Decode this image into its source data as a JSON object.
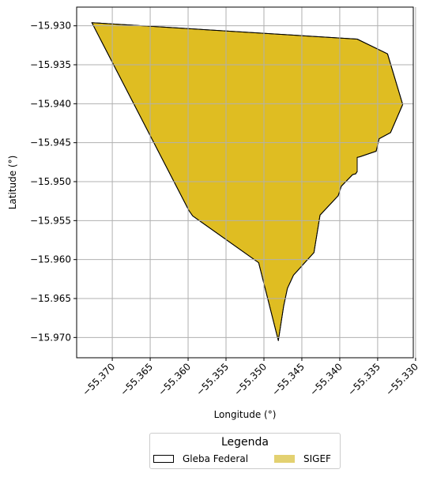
{
  "chart_data": {
    "type": "area",
    "title": "",
    "xlabel": "Longitude (°)",
    "ylabel": "Latitude (°)",
    "xlim": [
      -55.3747,
      -55.3303
    ],
    "ylim": [
      -15.9726,
      -15.9276
    ],
    "xticks": [
      -55.37,
      -55.365,
      -55.36,
      -55.355,
      -55.35,
      -55.345,
      -55.34,
      -55.335,
      -55.33
    ],
    "xtick_labels": [
      "−55.370",
      "−55.365",
      "−55.360",
      "−55.355",
      "−55.350",
      "−55.345",
      "−55.340",
      "−55.335",
      "−55.330"
    ],
    "yticks": [
      -15.93,
      -15.935,
      -15.94,
      -15.945,
      -15.95,
      -15.955,
      -15.96,
      -15.965,
      -15.97
    ],
    "ytick_labels": [
      "−15.930",
      "−15.935",
      "−15.940",
      "−15.945",
      "−15.950",
      "−15.955",
      "−15.960",
      "−15.965",
      "−15.970"
    ],
    "grid": true,
    "legend_position": "bottom-center",
    "series": [
      {
        "name": "Gleba Federal",
        "fill": "none",
        "edge": "#000000",
        "polygon": [
          [
            -55.3727,
            -15.9296
          ],
          [
            -55.3377,
            -15.9317
          ],
          [
            -55.3337,
            -15.9336
          ],
          [
            -55.3317,
            -15.9401
          ],
          [
            -55.3333,
            -15.9437
          ],
          [
            -55.3348,
            -15.9445
          ],
          [
            -55.3352,
            -15.9461
          ],
          [
            -55.3373,
            -15.9468
          ],
          [
            -55.3377,
            -15.9469
          ],
          [
            -55.3377,
            -15.9487
          ],
          [
            -55.3379,
            -15.949
          ],
          [
            -55.3383,
            -15.9491
          ],
          [
            -55.3398,
            -15.9506
          ],
          [
            -55.3402,
            -15.9518
          ],
          [
            -55.3426,
            -15.9543
          ],
          [
            -55.3434,
            -15.9591
          ],
          [
            -55.3461,
            -15.962
          ],
          [
            -55.3469,
            -15.9637
          ],
          [
            -55.3474,
            -15.966
          ],
          [
            -55.3481,
            -15.9704
          ],
          [
            -55.3507,
            -15.9604
          ],
          [
            -55.3594,
            -15.9544
          ],
          [
            -55.3599,
            -15.9537
          ]
        ]
      },
      {
        "name": "SIGEF",
        "fill": "#dfbd22",
        "edge": "#000000",
        "polygon": [
          [
            -55.3727,
            -15.9296
          ],
          [
            -55.3377,
            -15.9317
          ],
          [
            -55.3337,
            -15.9336
          ],
          [
            -55.3317,
            -15.9401
          ],
          [
            -55.3333,
            -15.9437
          ],
          [
            -55.3348,
            -15.9445
          ],
          [
            -55.3352,
            -15.9461
          ],
          [
            -55.3373,
            -15.9468
          ],
          [
            -55.3377,
            -15.9469
          ],
          [
            -55.3377,
            -15.9487
          ],
          [
            -55.3379,
            -15.949
          ],
          [
            -55.3383,
            -15.9491
          ],
          [
            -55.3398,
            -15.9506
          ],
          [
            -55.3402,
            -15.9518
          ],
          [
            -55.3426,
            -15.9543
          ],
          [
            -55.3434,
            -15.9591
          ],
          [
            -55.3461,
            -15.962
          ],
          [
            -55.3469,
            -15.9637
          ],
          [
            -55.3474,
            -15.966
          ],
          [
            -55.3481,
            -15.9704
          ],
          [
            -55.3507,
            -15.9604
          ],
          [
            -55.3594,
            -15.9544
          ],
          [
            -55.3599,
            -15.9537
          ]
        ]
      }
    ]
  },
  "legend": {
    "title": "Legenda",
    "entries": [
      {
        "label": "Gleba Federal",
        "fill": "#ffffff",
        "edge": "#000000"
      },
      {
        "label": "SIGEF",
        "fill": "#e3d171",
        "edge": "#e3d171"
      }
    ]
  }
}
